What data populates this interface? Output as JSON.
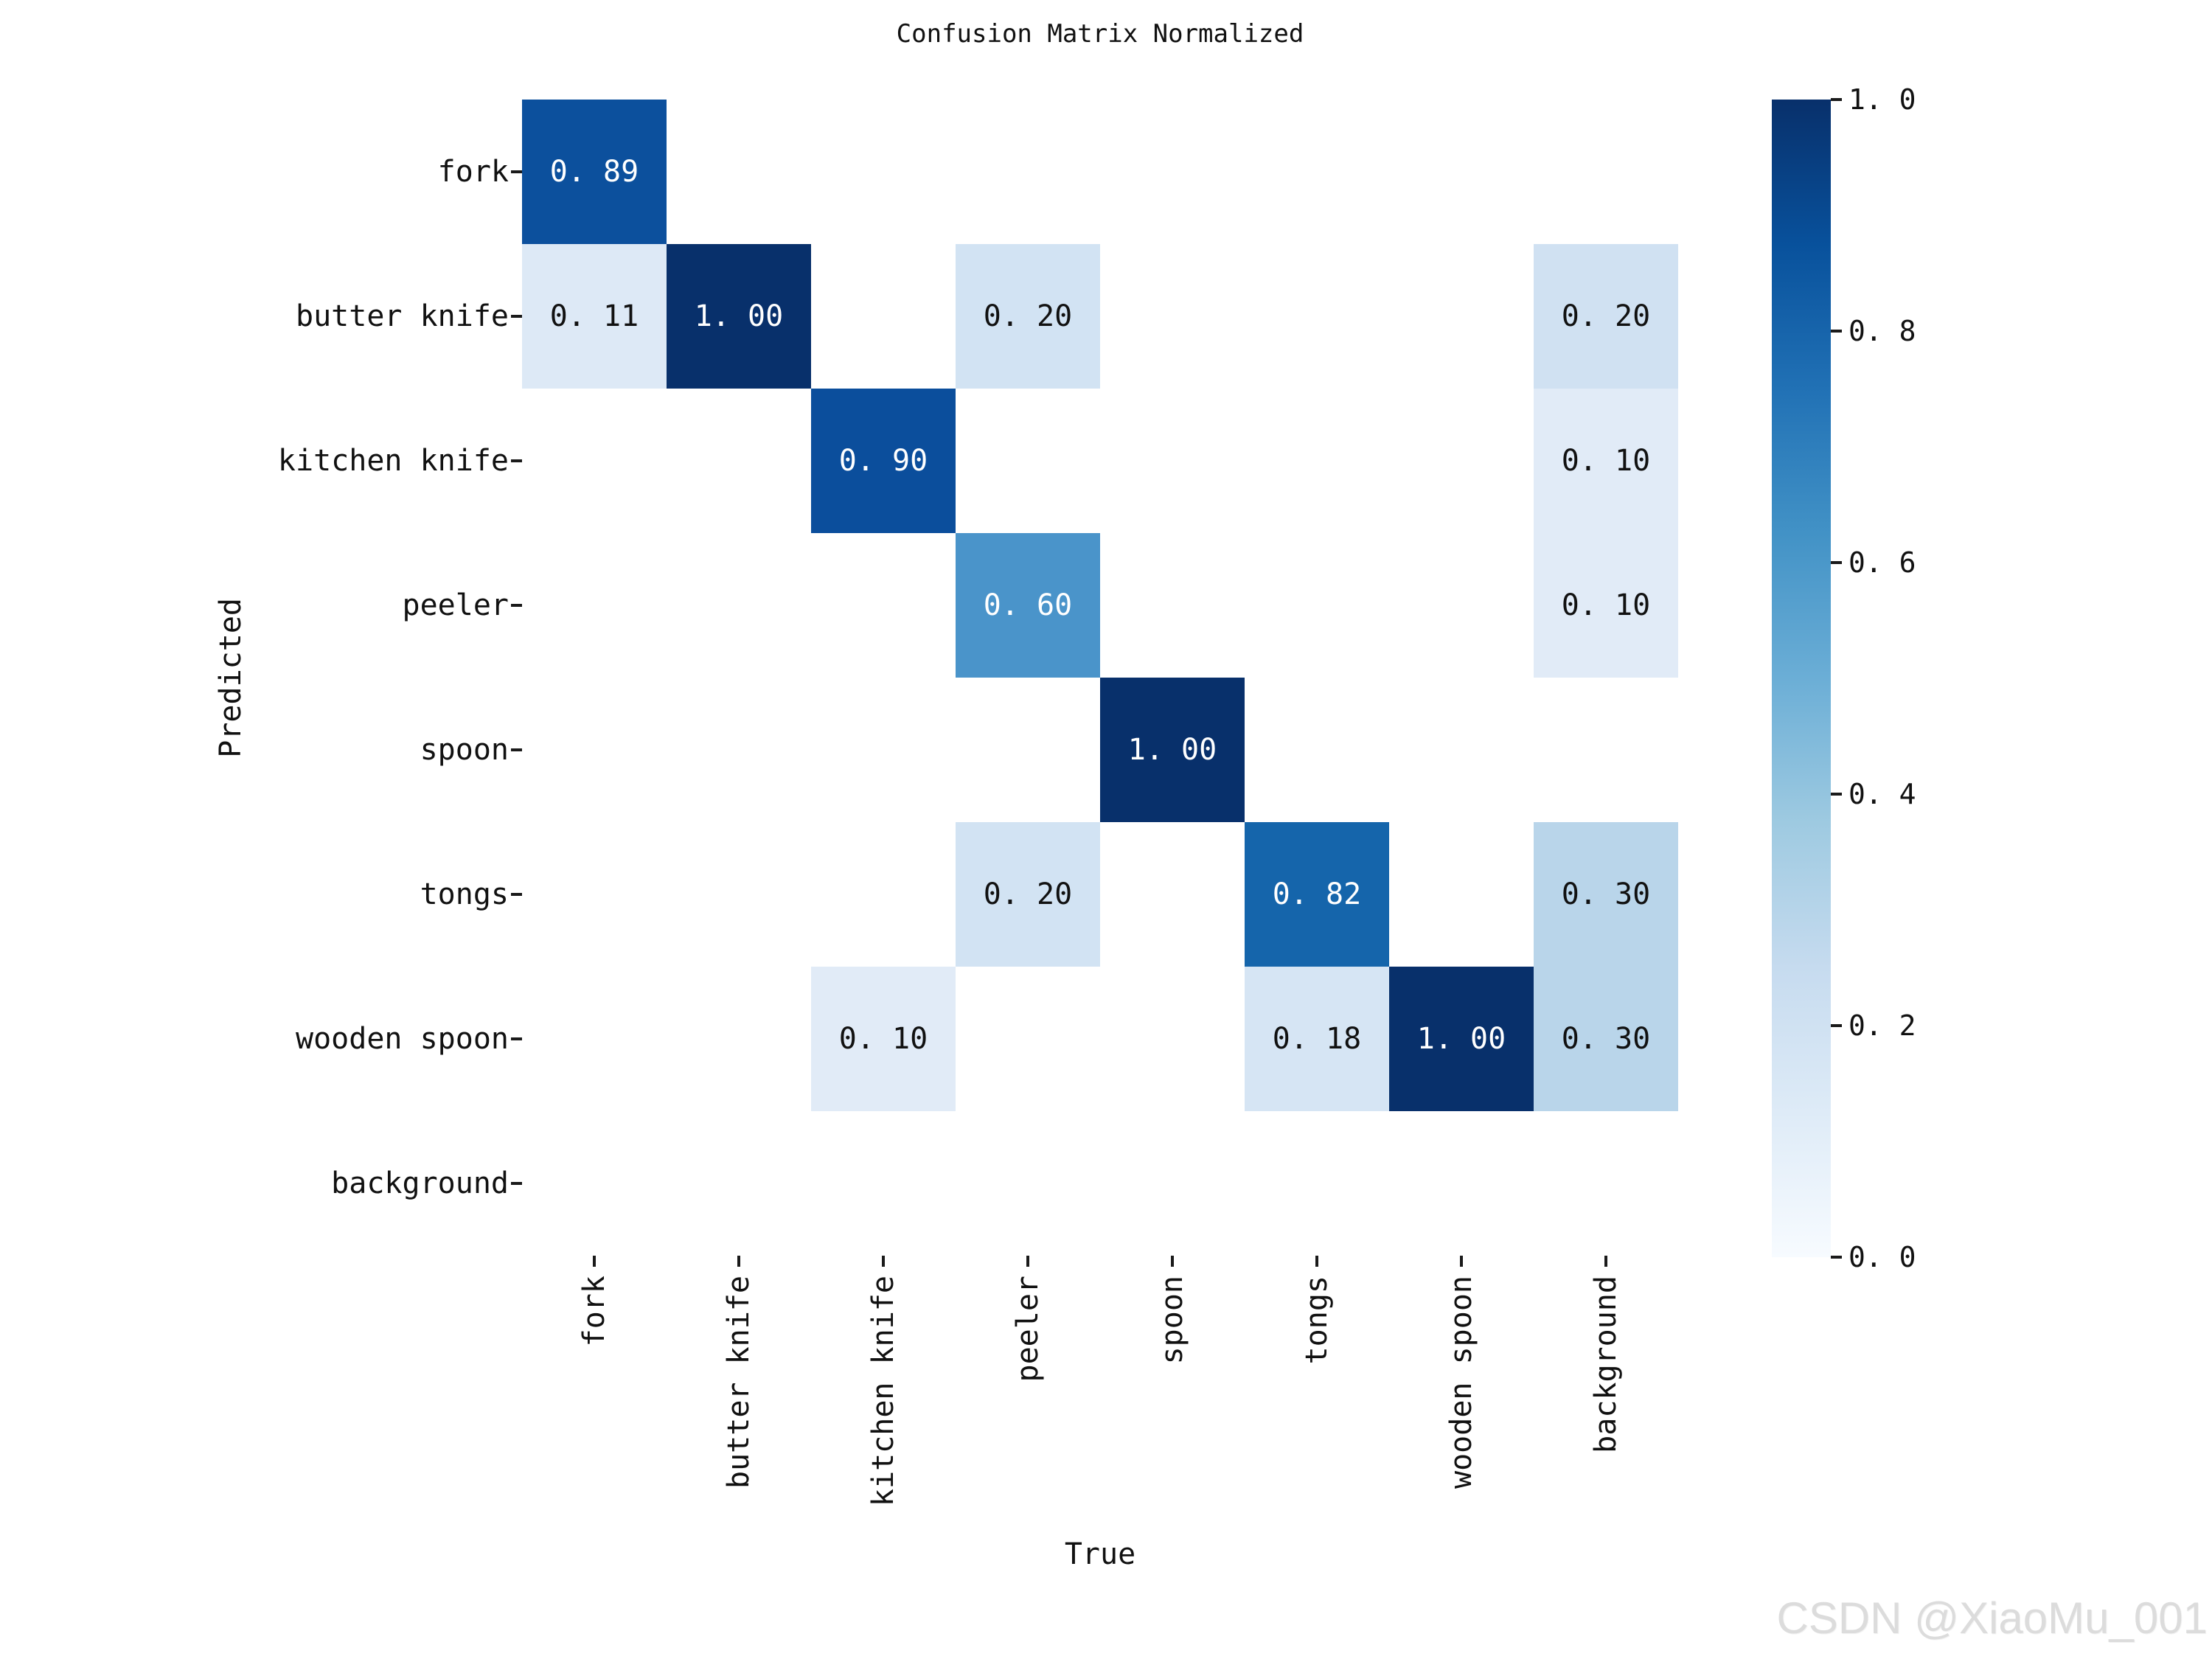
{
  "title": "Confusion Matrix Normalized",
  "watermark": "CSDN @XiaoMu_001",
  "axes": {
    "x_label": "True",
    "y_label": "Predicted"
  },
  "categories": [
    "fork",
    "butter knife",
    "kitchen knife",
    "peeler",
    "spoon",
    "tongs",
    "wooden spoon",
    "background"
  ],
  "colorbar": {
    "tick_labels": [
      "1. 0",
      "0. 8",
      "0. 6",
      "0. 4",
      "0. 2",
      "0. 0"
    ],
    "top_color": "#08306b",
    "bottom_color": "#f7fbff"
  },
  "cells": [
    {
      "row": 0,
      "col": 0,
      "label": "0. 89",
      "value": 0.89,
      "bg": "#0C509D",
      "fg": "#ffffff"
    },
    {
      "row": 1,
      "col": 0,
      "label": "0. 11",
      "value": 0.11,
      "bg": "#DDE9F6",
      "fg": "#111111"
    },
    {
      "row": 1,
      "col": 1,
      "label": "1. 00",
      "value": 1.0,
      "bg": "#08306B",
      "fg": "#ffffff"
    },
    {
      "row": 1,
      "col": 3,
      "label": "0. 20",
      "value": 0.2,
      "bg": "#D2E3F3",
      "fg": "#111111"
    },
    {
      "row": 1,
      "col": 7,
      "label": "0. 20",
      "value": 0.2,
      "bg": "#D0E1F2",
      "fg": "#111111"
    },
    {
      "row": 2,
      "col": 2,
      "label": "0. 90",
      "value": 0.9,
      "bg": "#0B4E9C",
      "fg": "#ffffff"
    },
    {
      "row": 2,
      "col": 7,
      "label": "0. 10",
      "value": 0.1,
      "bg": "#E1EBF7",
      "fg": "#111111"
    },
    {
      "row": 3,
      "col": 3,
      "label": "0. 60",
      "value": 0.6,
      "bg": "#4A94CA",
      "fg": "#ffffff"
    },
    {
      "row": 3,
      "col": 7,
      "label": "0. 10",
      "value": 0.1,
      "bg": "#E1EBF7",
      "fg": "#111111"
    },
    {
      "row": 4,
      "col": 4,
      "label": "1. 00",
      "value": 1.0,
      "bg": "#08306B",
      "fg": "#ffffff"
    },
    {
      "row": 5,
      "col": 3,
      "label": "0. 20",
      "value": 0.2,
      "bg": "#D2E3F3",
      "fg": "#111111"
    },
    {
      "row": 5,
      "col": 5,
      "label": "0. 82",
      "value": 0.82,
      "bg": "#1565AB",
      "fg": "#ffffff"
    },
    {
      "row": 5,
      "col": 7,
      "label": "0. 30",
      "value": 0.3,
      "bg": "#B9D5EA",
      "fg": "#111111"
    },
    {
      "row": 6,
      "col": 2,
      "label": "0. 10",
      "value": 0.1,
      "bg": "#E1EBF7",
      "fg": "#111111"
    },
    {
      "row": 6,
      "col": 5,
      "label": "0. 18",
      "value": 0.18,
      "bg": "#D6E5F4",
      "fg": "#111111"
    },
    {
      "row": 6,
      "col": 6,
      "label": "1. 00",
      "value": 1.0,
      "bg": "#08306B",
      "fg": "#ffffff"
    },
    {
      "row": 6,
      "col": 7,
      "label": "0. 30",
      "value": 0.3,
      "bg": "#B9D5EA",
      "fg": "#111111"
    }
  ],
  "chart_data": {
    "type": "heatmap",
    "title": "Confusion Matrix Normalized",
    "xlabel": "True",
    "ylabel": "Predicted",
    "x_categories": [
      "fork",
      "butter knife",
      "kitchen knife",
      "peeler",
      "spoon",
      "tongs",
      "wooden spoon",
      "background"
    ],
    "y_categories": [
      "fork",
      "butter knife",
      "kitchen knife",
      "peeler",
      "spoon",
      "tongs",
      "wooden spoon",
      "background"
    ],
    "matrix": [
      [
        0.89,
        0,
        0,
        0,
        0,
        0,
        0,
        0
      ],
      [
        0.11,
        1.0,
        0,
        0.2,
        0,
        0,
        0,
        0.2
      ],
      [
        0,
        0,
        0.9,
        0,
        0,
        0,
        0,
        0.1
      ],
      [
        0,
        0,
        0,
        0.6,
        0,
        0,
        0,
        0.1
      ],
      [
        0,
        0,
        0,
        0,
        1.0,
        0,
        0,
        0
      ],
      [
        0,
        0,
        0,
        0.2,
        0,
        0.82,
        0,
        0.3
      ],
      [
        0,
        0,
        0.1,
        0,
        0,
        0.18,
        1.0,
        0.3
      ],
      [
        0,
        0,
        0,
        0,
        0,
        0,
        0,
        0
      ]
    ],
    "colormap": "Blues",
    "value_range": [
      0.0,
      1.0
    ],
    "colorbar_ticks": [
      1.0,
      0.8,
      0.6,
      0.4,
      0.2,
      0.0
    ],
    "annotations_show_zero": false,
    "legend_position": "right-colorbar",
    "grid": false
  }
}
